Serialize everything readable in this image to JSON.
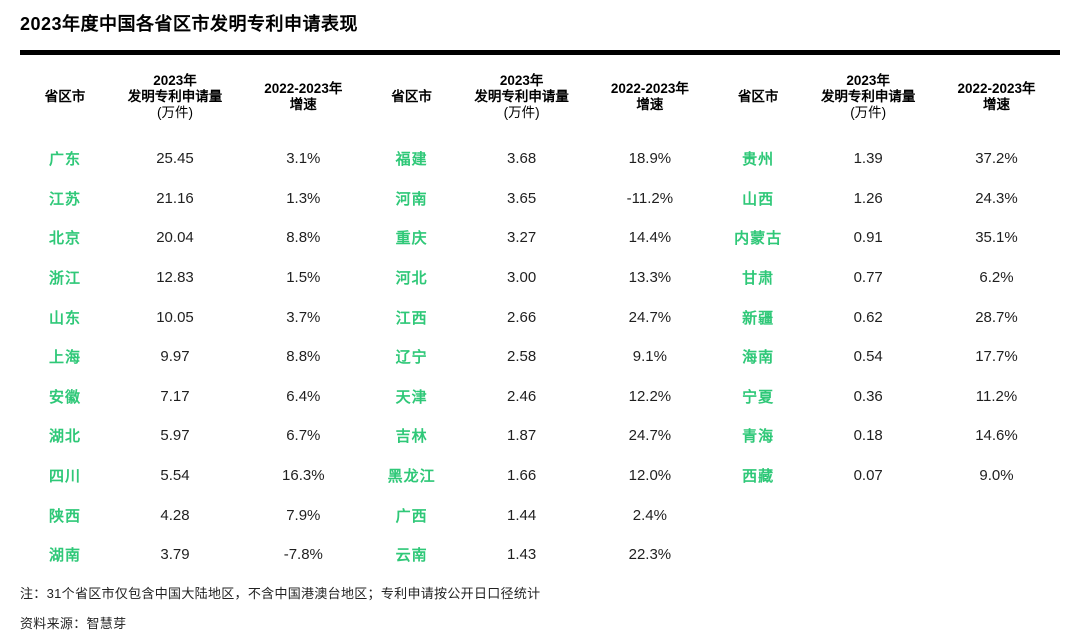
{
  "title": "2023年度中国各省区市发明专利申请表现",
  "colors": {
    "province_green": "#2fc878",
    "text_dark": "#1f1f1f",
    "rule_black": "#000000"
  },
  "table": {
    "headers": {
      "province": "省区市",
      "amount_line1": "2023年",
      "amount_line2": "发明专利申请量",
      "amount_line3": "(万件)",
      "growth_line1": "2022-2023年",
      "growth_line2": "增速"
    },
    "groups": [
      {
        "rows": [
          {
            "province": "广东",
            "amount": "25.45",
            "growth": "3.1%"
          },
          {
            "province": "江苏",
            "amount": "21.16",
            "growth": "1.3%"
          },
          {
            "province": "北京",
            "amount": "20.04",
            "growth": "8.8%"
          },
          {
            "province": "浙江",
            "amount": "12.83",
            "growth": "1.5%"
          },
          {
            "province": "山东",
            "amount": "10.05",
            "growth": "3.7%"
          },
          {
            "province": "上海",
            "amount": "9.97",
            "growth": "8.8%"
          },
          {
            "province": "安徽",
            "amount": "7.17",
            "growth": "6.4%"
          },
          {
            "province": "湖北",
            "amount": "5.97",
            "growth": "6.7%"
          },
          {
            "province": "四川",
            "amount": "5.54",
            "growth": "16.3%"
          },
          {
            "province": "陕西",
            "amount": "4.28",
            "growth": "7.9%"
          },
          {
            "province": "湖南",
            "amount": "3.79",
            "growth": "-7.8%"
          }
        ]
      },
      {
        "rows": [
          {
            "province": "福建",
            "amount": "3.68",
            "growth": "18.9%"
          },
          {
            "province": "河南",
            "amount": "3.65",
            "growth": "-11.2%"
          },
          {
            "province": "重庆",
            "amount": "3.27",
            "growth": "14.4%"
          },
          {
            "province": "河北",
            "amount": "3.00",
            "growth": "13.3%"
          },
          {
            "province": "江西",
            "amount": "2.66",
            "growth": "24.7%"
          },
          {
            "province": "辽宁",
            "amount": "2.58",
            "growth": "9.1%"
          },
          {
            "province": "天津",
            "amount": "2.46",
            "growth": "12.2%"
          },
          {
            "province": "吉林",
            "amount": "1.87",
            "growth": "24.7%"
          },
          {
            "province": "黑龙江",
            "amount": "1.66",
            "growth": "12.0%"
          },
          {
            "province": "广西",
            "amount": "1.44",
            "growth": "2.4%"
          },
          {
            "province": "云南",
            "amount": "1.43",
            "growth": "22.3%"
          }
        ]
      },
      {
        "rows": [
          {
            "province": "贵州",
            "amount": "1.39",
            "growth": "37.2%"
          },
          {
            "province": "山西",
            "amount": "1.26",
            "growth": "24.3%"
          },
          {
            "province": "内蒙古",
            "amount": "0.91",
            "growth": "35.1%"
          },
          {
            "province": "甘肃",
            "amount": "0.77",
            "growth": "6.2%"
          },
          {
            "province": "新疆",
            "amount": "0.62",
            "growth": "28.7%"
          },
          {
            "province": "海南",
            "amount": "0.54",
            "growth": "17.7%"
          },
          {
            "province": "宁夏",
            "amount": "0.36",
            "growth": "11.2%"
          },
          {
            "province": "青海",
            "amount": "0.18",
            "growth": "14.6%"
          },
          {
            "province": "西藏",
            "amount": "0.07",
            "growth": "9.0%"
          }
        ]
      }
    ]
  },
  "notes": {
    "note": "注：31个省区市仅包含中国大陆地区，不含中国港澳台地区；专利申请按公开日口径统计",
    "source": "资料来源：智慧芽"
  },
  "chart_data": {
    "type": "table",
    "title": "2023年度中国各省区市发明专利申请表现",
    "columns": [
      "省区市",
      "2023年发明专利申请量(万件)",
      "2022-2023年增速"
    ],
    "rows": [
      [
        "广东",
        25.45,
        "3.1%"
      ],
      [
        "江苏",
        21.16,
        "1.3%"
      ],
      [
        "北京",
        20.04,
        "8.8%"
      ],
      [
        "浙江",
        12.83,
        "1.5%"
      ],
      [
        "山东",
        10.05,
        "3.7%"
      ],
      [
        "上海",
        9.97,
        "8.8%"
      ],
      [
        "安徽",
        7.17,
        "6.4%"
      ],
      [
        "湖北",
        5.97,
        "6.7%"
      ],
      [
        "四川",
        5.54,
        "16.3%"
      ],
      [
        "陕西",
        4.28,
        "7.9%"
      ],
      [
        "湖南",
        3.79,
        "-7.8%"
      ],
      [
        "福建",
        3.68,
        "18.9%"
      ],
      [
        "河南",
        3.65,
        "-11.2%"
      ],
      [
        "重庆",
        3.27,
        "14.4%"
      ],
      [
        "河北",
        3.0,
        "13.3%"
      ],
      [
        "江西",
        2.66,
        "24.7%"
      ],
      [
        "辽宁",
        2.58,
        "9.1%"
      ],
      [
        "天津",
        2.46,
        "12.2%"
      ],
      [
        "吉林",
        1.87,
        "24.7%"
      ],
      [
        "黑龙江",
        1.66,
        "12.0%"
      ],
      [
        "广西",
        1.44,
        "2.4%"
      ],
      [
        "云南",
        1.43,
        "22.3%"
      ],
      [
        "贵州",
        1.39,
        "37.2%"
      ],
      [
        "山西",
        1.26,
        "24.3%"
      ],
      [
        "内蒙古",
        0.91,
        "35.1%"
      ],
      [
        "甘肃",
        0.77,
        "6.2%"
      ],
      [
        "新疆",
        0.62,
        "28.7%"
      ],
      [
        "海南",
        0.54,
        "17.7%"
      ],
      [
        "宁夏",
        0.36,
        "11.2%"
      ],
      [
        "青海",
        0.18,
        "14.6%"
      ],
      [
        "西藏",
        0.07,
        "9.0%"
      ]
    ],
    "notes": [
      "注：31个省区市仅包含中国大陆地区，不含中国港澳台地区；专利申请按公开日口径统计",
      "资料来源：智慧芽"
    ]
  }
}
